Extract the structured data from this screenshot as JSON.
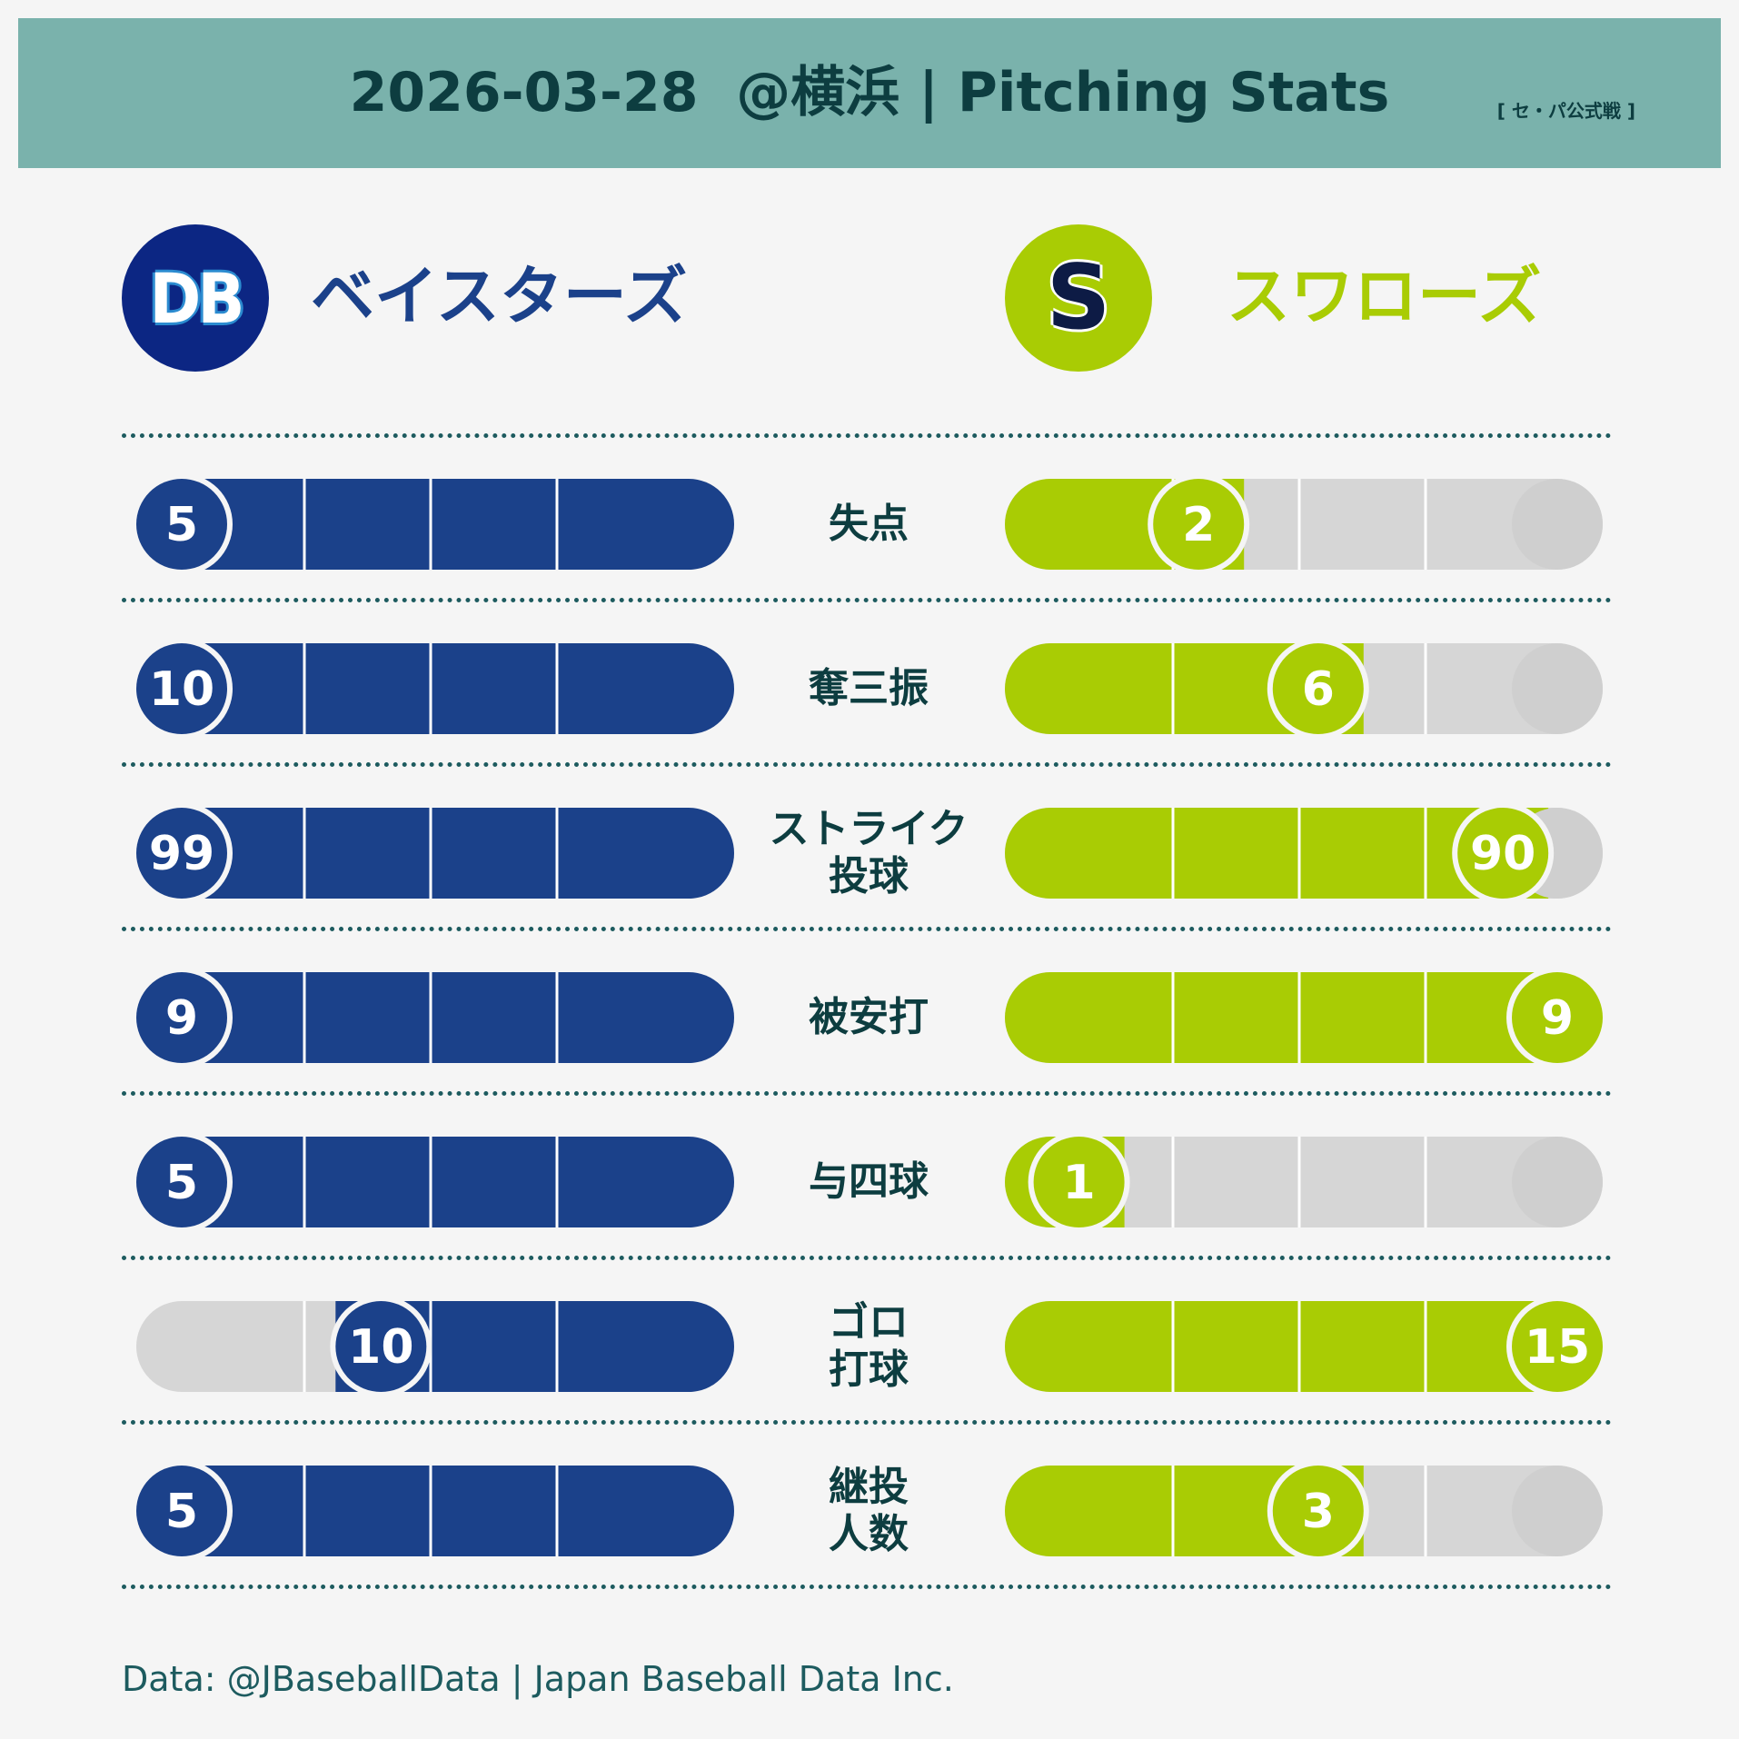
{
  "header": {
    "title": "2026-03-28  @横浜 | Pitching Stats",
    "badge": "[ セ・パ公式戦 ]"
  },
  "teams": {
    "left": {
      "name": "ベイスターズ",
      "logo_text": "DB",
      "color": "#1b418a",
      "logo_bg": "#0c2683"
    },
    "right": {
      "name": "スワローズ",
      "logo_text": "S",
      "color": "#a9cc04",
      "logo_bg": "#a9cc04"
    }
  },
  "chart_data": {
    "type": "bar",
    "categories": [
      "失点",
      "奪三振",
      "ストライク\n投球",
      "被安打",
      "与四球",
      "ゴロ\n打球",
      "継投\n人数"
    ],
    "series": [
      {
        "name": "ベイスターズ",
        "values": [
          5,
          10,
          99,
          9,
          5,
          10,
          5
        ]
      },
      {
        "name": "スワローズ",
        "values": [
          2,
          6,
          90,
          9,
          1,
          15,
          3
        ]
      }
    ],
    "colors": {
      "left": "#1b418a",
      "right": "#a9cc04",
      "track": "#d6d6d6"
    }
  },
  "footer": {
    "source": "Data: @JBaseballData | Japan Baseball Data Inc."
  }
}
